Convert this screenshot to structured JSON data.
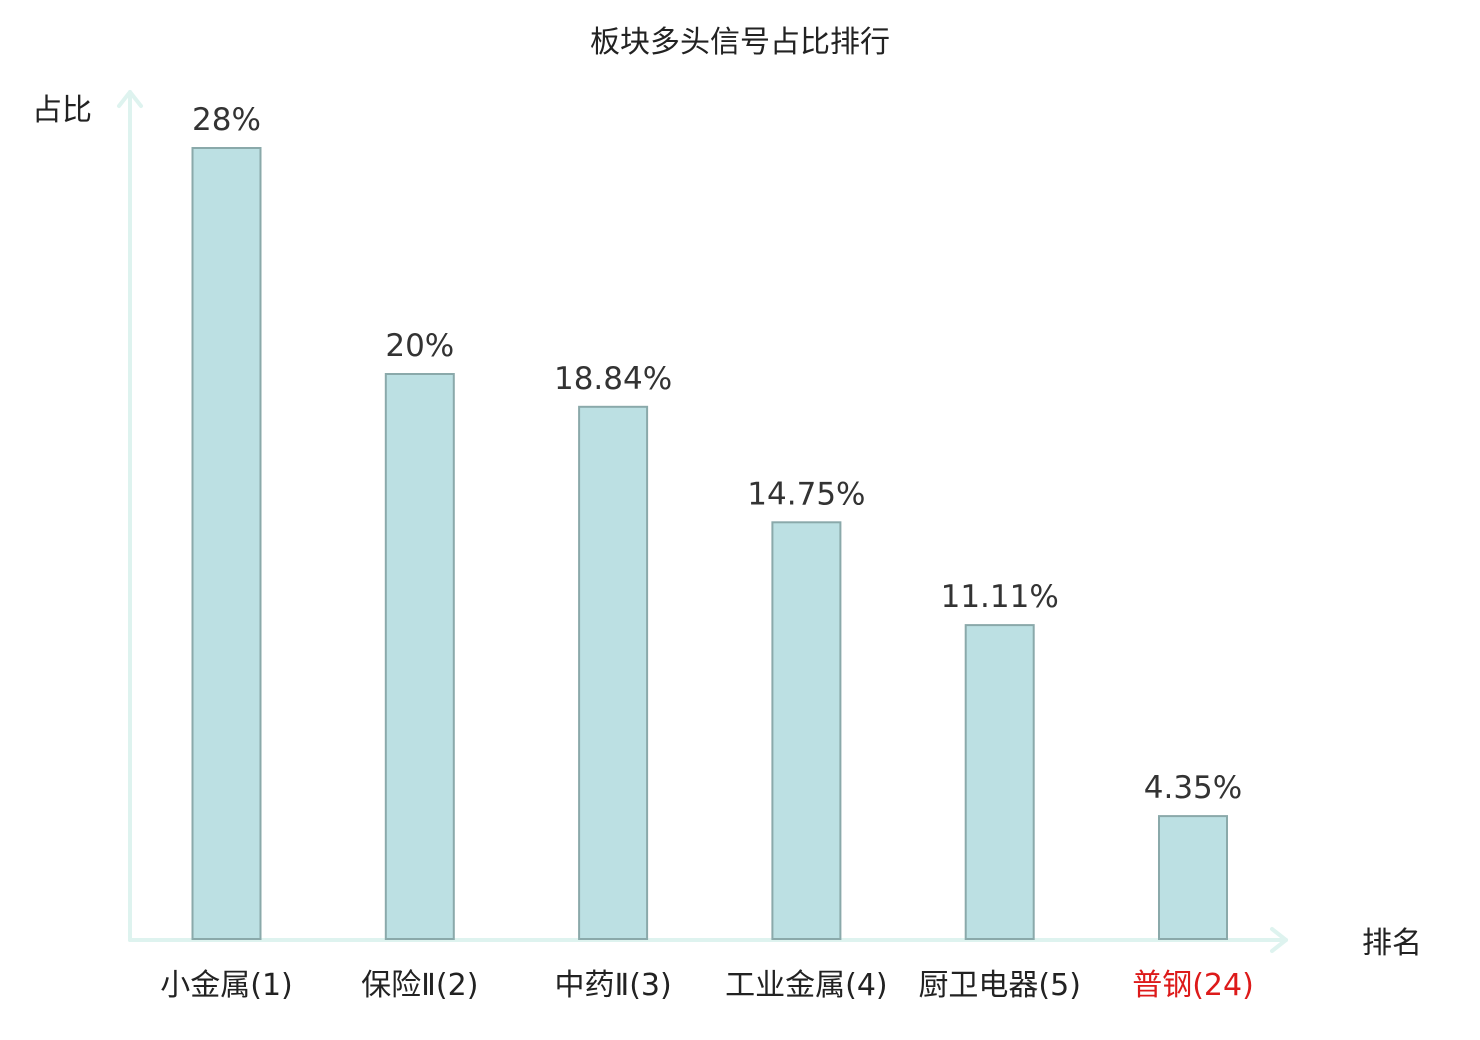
{
  "chart_data": {
    "type": "bar",
    "title": "板块多头信号占比排行",
    "xlabel": "排名",
    "ylabel": "占比",
    "categories": [
      "小金属(1)",
      "保险Ⅱ(2)",
      "中药Ⅱ(3)",
      "工业金属(4)",
      "厨卫电器(5)",
      "普钢(24)"
    ],
    "values": [
      28,
      20,
      18.84,
      14.75,
      11.11,
      4.35
    ],
    "value_labels": [
      "28%",
      "20%",
      "18.84%",
      "14.75%",
      "11.11%",
      "4.35%"
    ],
    "highlighted_category": "普钢(24)",
    "ylim": [
      0,
      28
    ],
    "grid": false,
    "legend": "none",
    "colors": {
      "bar_fill": "#bce0e3",
      "bar_stroke": "#8aa9aa",
      "axis": "#def3ef",
      "text": "#222222",
      "value_text": "#333333",
      "highlight_text": "#dd1a1a"
    }
  }
}
